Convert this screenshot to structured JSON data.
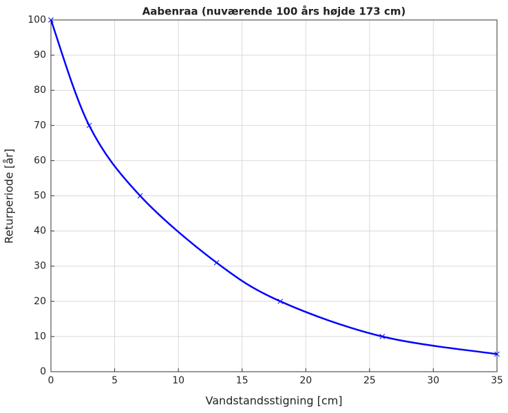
{
  "chart_data": {
    "type": "line",
    "title": "Aabenraa (nuværende 100 års højde 173 cm)",
    "x_label": "Vandstandsstigning [cm]",
    "y_label": "Returperiode [år]",
    "x": [
      0,
      3,
      7,
      13,
      18,
      26,
      35
    ],
    "series": [
      {
        "color": "#0000ff",
        "marker": "x",
        "values": [
          100,
          70,
          50,
          31,
          20,
          10,
          5
        ]
      }
    ],
    "xlim": [
      0,
      35
    ],
    "xticks": [
      0,
      5,
      10,
      15,
      20,
      25,
      30,
      35
    ],
    "ylim": [
      0,
      100
    ],
    "yticks": [
      0,
      10,
      20,
      30,
      40,
      50,
      60,
      70,
      80,
      90,
      100
    ],
    "grid": true
  }
}
